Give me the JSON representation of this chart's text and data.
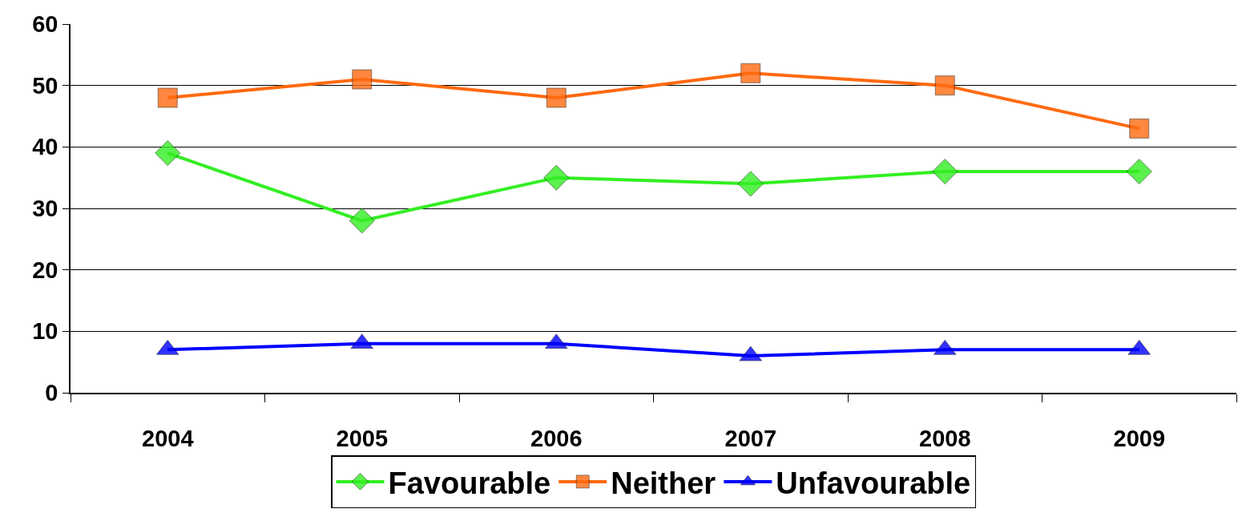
{
  "chart_data": {
    "type": "line",
    "categories": [
      "2004",
      "2005",
      "2006",
      "2007",
      "2008",
      "2009"
    ],
    "series": [
      {
        "name": "Favourable",
        "color": "#33ee22",
        "marker": "diamond",
        "values": [
          39,
          28,
          35,
          34,
          36,
          36
        ]
      },
      {
        "name": "Neither",
        "color": "#ff6a10",
        "marker": "square",
        "values": [
          48,
          51,
          48,
          52,
          50,
          43
        ]
      },
      {
        "name": "Unfavourable",
        "color": "#0000ff",
        "marker": "triangle",
        "values": [
          7,
          8,
          8,
          6,
          7,
          7
        ]
      }
    ],
    "ylim": [
      0,
      60
    ],
    "yticks": [
      0,
      10,
      20,
      30,
      40,
      50,
      60
    ],
    "grid": "y",
    "legend": "bottom",
    "line_style": "solid"
  }
}
